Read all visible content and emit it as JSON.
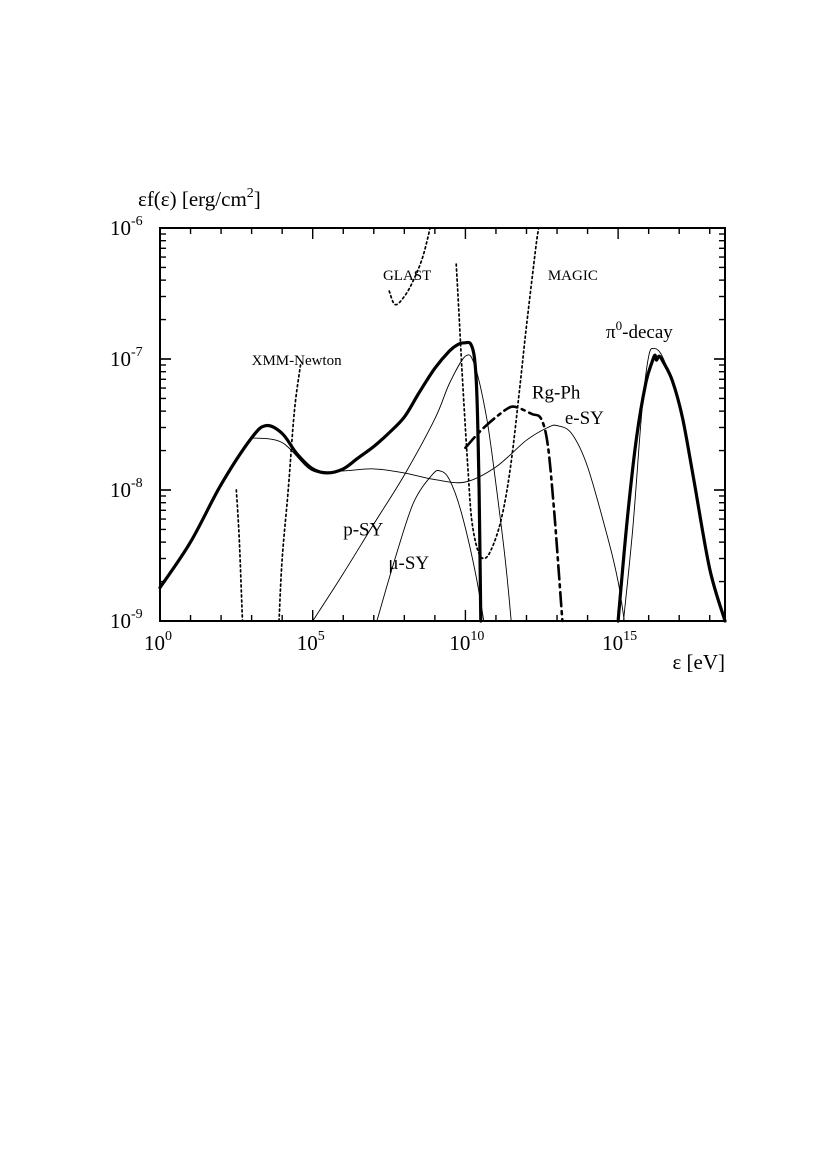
{
  "chart_data": {
    "type": "line",
    "title": "",
    "ylabel": {
      "main": "εf(ε) [erg/cm",
      "sup": "2",
      "end": "]"
    },
    "xlabel": "ε [eV]",
    "log_x": true,
    "log_y": true,
    "xlim": [
      1,
      3.16e+18
    ],
    "ylim": [
      1e-09,
      1e-06
    ],
    "x_ticks": [
      {
        "value": 1,
        "base": "10",
        "exp": "0"
      },
      {
        "value": 100000.0,
        "base": "10",
        "exp": "5"
      },
      {
        "value": 10000000000.0,
        "base": "10",
        "exp": "10"
      },
      {
        "value": 1000000000000000.0,
        "base": "10",
        "exp": "15"
      }
    ],
    "y_ticks": [
      {
        "value": 1e-09,
        "base": "10",
        "exp": "-9"
      },
      {
        "value": 1e-08,
        "base": "10",
        "exp": "-8"
      },
      {
        "value": 1e-07,
        "base": "10",
        "exp": "-7"
      },
      {
        "value": 1e-06,
        "base": "10",
        "exp": "-6"
      }
    ],
    "series": [
      {
        "name": "total",
        "style": "thick",
        "points": [
          [
            1,
            1.8e-09
          ],
          [
            10,
            4e-09
          ],
          [
            100,
            1.1e-08
          ],
          [
            1000,
            2.5e-08
          ],
          [
            3000,
            3.1e-08
          ],
          [
            10000,
            2.7e-08
          ],
          [
            30000,
            1.9e-08
          ],
          [
            100000,
            1.45e-08
          ],
          [
            300000,
            1.35e-08
          ],
          [
            1000000.0,
            1.45e-08
          ],
          [
            3000000.0,
            1.75e-08
          ],
          [
            10000000.0,
            2.15e-08
          ],
          [
            30000000.0,
            2.7e-08
          ],
          [
            100000000.0,
            3.6e-08
          ],
          [
            300000000.0,
            5.5e-08
          ],
          [
            1000000000.0,
            8.5e-08
          ],
          [
            3000000000.0,
            1.15e-07
          ],
          [
            6000000000.0,
            1.3e-07
          ],
          [
            10000000000.0,
            1.33e-07
          ],
          [
            15000000000.0,
            1.3e-07
          ],
          [
            20000000000.0,
            1e-07
          ],
          [
            24000000000.0,
            5e-08
          ],
          [
            28000000000.0,
            1e-08
          ],
          [
            32000000000.0,
            1e-09
          ]
        ]
      },
      {
        "name": "",
        "style": "thick",
        "points": [
          [
            1000000000000000.0,
            1e-09
          ],
          [
            2000000000000000.0,
            6e-09
          ],
          [
            4000000000000000.0,
            2.5e-08
          ],
          [
            8000000000000000.0,
            6.5e-08
          ],
          [
            1.3e+16,
            9.5e-08
          ],
          [
            1.6e+16,
            1.07e-07
          ],
          [
            1.8e+16,
            9.8e-08
          ],
          [
            2.2e+16,
            1.05e-07
          ],
          [
            3e+16,
            9.5e-08
          ],
          [
            6e+16,
            6.8e-08
          ],
          [
            1.3e+17,
            3.5e-08
          ],
          [
            3e+17,
            1.2e-08
          ],
          [
            1e+18,
            2.5e-09
          ],
          [
            3.16e+18,
            1e-09
          ]
        ]
      },
      {
        "name": "p-SY",
        "style": "thin",
        "points": [
          [
            100000.0,
            1e-09
          ],
          [
            1000000.0,
            2.3e-09
          ],
          [
            10000000.0,
            5.5e-09
          ],
          [
            100000000.0,
            1.3e-08
          ],
          [
            1000000000.0,
            3.5e-08
          ],
          [
            3000000000.0,
            6.5e-08
          ],
          [
            10000000000.0,
            1.05e-07
          ],
          [
            20000000000.0,
            9e-08
          ],
          [
            50000000000.0,
            3.5e-08
          ],
          [
            100000000000.0,
            1.1e-08
          ],
          [
            200000000000.0,
            3e-09
          ],
          [
            316000000000.0,
            1e-09
          ]
        ]
      },
      {
        "name": "μ-SY",
        "style": "thin",
        "points": [
          [
            12600000.0,
            1e-09
          ],
          [
            50000000.0,
            3e-09
          ],
          [
            200000000.0,
            8e-09
          ],
          [
            800000000.0,
            1.3e-08
          ],
          [
            1500000000.0,
            1.4e-08
          ],
          [
            3000000000.0,
            1.2e-08
          ],
          [
            7000000000.0,
            7e-09
          ],
          [
            20000000000.0,
            2.5e-09
          ],
          [
            40000000000.0,
            1e-09
          ]
        ]
      },
      {
        "name": "e-SY",
        "style": "thin",
        "points": [
          [
            1000,
            2.5e-08
          ],
          [
            10000,
            2.3e-08
          ],
          [
            100000,
            1.4e-08
          ],
          [
            1000000.0,
            1.4e-08
          ],
          [
            10000000.0,
            1.45e-08
          ],
          [
            100000000.0,
            1.35e-08
          ],
          [
            1000000000.0,
            1.2e-08
          ],
          [
            10000000000.0,
            1.15e-08
          ],
          [
            100000000000.0,
            1.5e-08
          ],
          [
            1000000000000.0,
            2.4e-08
          ],
          [
            5000000000000.0,
            3e-08
          ],
          [
            10000000000000.0,
            3.1e-08
          ],
          [
            30000000000000.0,
            2.7e-08
          ],
          [
            100000000000000.0,
            1.5e-08
          ],
          [
            500000000000000.0,
            4e-09
          ],
          [
            1000000000000000.0,
            2e-09
          ],
          [
            1600000000000000.0,
            1e-09
          ]
        ]
      },
      {
        "name": "π0-decay",
        "style": "thin",
        "points": [
          [
            1500000000000000.0,
            1e-09
          ],
          [
            3000000000000000.0,
            5e-09
          ],
          [
            6000000000000000.0,
            4e-08
          ],
          [
            1e+16,
            1.05e-07
          ],
          [
            1.5e+16,
            1.2e-07
          ],
          [
            2.5e+16,
            1.1e-07
          ],
          [
            5e+16,
            7.5e-08
          ],
          [
            1e+17,
            4.5e-08
          ],
          [
            3e+17,
            1.2e-08
          ],
          [
            1e+18,
            2.5e-09
          ],
          [
            3.16e+18,
            1e-09
          ]
        ]
      },
      {
        "name": "Rg-Ph",
        "style": "dashdot",
        "points": [
          [
            10000000000.0,
            2.1e-08
          ],
          [
            30000000000.0,
            2.8e-08
          ],
          [
            100000000000.0,
            3.6e-08
          ],
          [
            300000000000.0,
            4.3e-08
          ],
          [
            600000000000.0,
            4.2e-08
          ],
          [
            1500000000000.0,
            3.8e-08
          ],
          [
            3000000000000.0,
            3.5e-08
          ],
          [
            5000000000000.0,
            2.2e-08
          ],
          [
            8000000000000.0,
            7e-09
          ],
          [
            12000000000000.0,
            2e-09
          ],
          [
            15000000000000.0,
            1e-09
          ]
        ]
      },
      {
        "name": "XMM-Newton",
        "style": "dotted",
        "points": [
          [
            316,
            1e-08
          ],
          [
            398,
            4e-09
          ],
          [
            501,
            1e-09
          ]
        ]
      },
      {
        "name": "",
        "style": "dotted",
        "points": [
          [
            7900,
            1e-09
          ],
          [
            10000,
            3e-09
          ],
          [
            15800,
            1e-08
          ],
          [
            25100,
            4e-08
          ],
          [
            39800,
            9e-08
          ]
        ]
      },
      {
        "name": "GLAST",
        "style": "dotted",
        "points": [
          [
            32000000.0,
            3.3e-07
          ],
          [
            50000000.0,
            2.6e-07
          ],
          [
            100000000.0,
            3e-07
          ],
          [
            200000000.0,
            4e-07
          ],
          [
            400000000.0,
            6e-07
          ],
          [
            700000000.0,
            1e-06
          ]
        ]
      },
      {
        "name": "",
        "style": "dotted",
        "points": [
          [
            5000000000.0,
            5.3e-07
          ],
          [
            6000000000.0,
            2.5e-07
          ],
          [
            8000000000.0,
            7e-08
          ],
          [
            12000000000.0,
            1.5e-08
          ],
          [
            16000000000.0,
            6e-09
          ],
          [
            25000000000.0,
            3.5e-09
          ],
          [
            40000000000.0,
            3e-09
          ],
          [
            70000000000.0,
            3.5e-09
          ],
          [
            150000000000.0,
            6e-09
          ],
          [
            300000000000.0,
            1.5e-08
          ],
          [
            600000000000.0,
            6e-08
          ],
          [
            1000000000000.0,
            1.8e-07
          ],
          [
            2000000000000.0,
            7e-07
          ],
          [
            2500000000000.0,
            1e-06
          ]
        ]
      }
    ],
    "annotations": [
      {
        "text": "GLAST",
        "x": 20000000.0,
        "y": 4e-07
      },
      {
        "text": "MAGIC",
        "x": 5000000000000.0,
        "y": 4e-07
      },
      {
        "text": "XMM-Newton",
        "x": 1000,
        "y": 9e-08
      },
      {
        "text": "Rg-Ph",
        "x": 1500000000000.0,
        "y": 5e-08
      },
      {
        "text": "e-SY",
        "x": 18000000000000.0,
        "y": 3.2e-08
      },
      {
        "text": "p-SY",
        "x": 1000000.0,
        "y": 4.5e-09
      },
      {
        "text": "μ-SY",
        "x": 30000000.0,
        "y": 2.5e-09
      }
    ],
    "pi0_label": {
      "base": "π",
      "sup": "0",
      "rest": "-decay",
      "x": 1.5e+16,
      "y": 1.3e-07
    }
  }
}
